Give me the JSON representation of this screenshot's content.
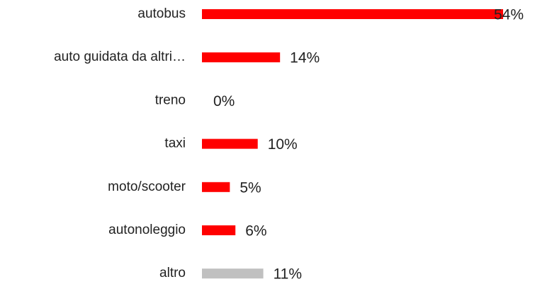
{
  "chart_data": {
    "type": "hbar",
    "categories": [
      "autobus",
      "auto guidata da altri…",
      "treno",
      "taxi",
      "moto/scooter",
      "autonoleggio",
      "altro"
    ],
    "values": [
      54,
      14,
      0,
      10,
      5,
      6,
      11
    ],
    "value_labels": [
      "54%",
      "14%",
      "0%",
      "10%",
      "5%",
      "6%",
      "11%"
    ],
    "colors": [
      "#ff0000",
      "#ff0000",
      "#ff0000",
      "#ff0000",
      "#ff0000",
      "#ff0000",
      "#c0c0c0"
    ]
  }
}
